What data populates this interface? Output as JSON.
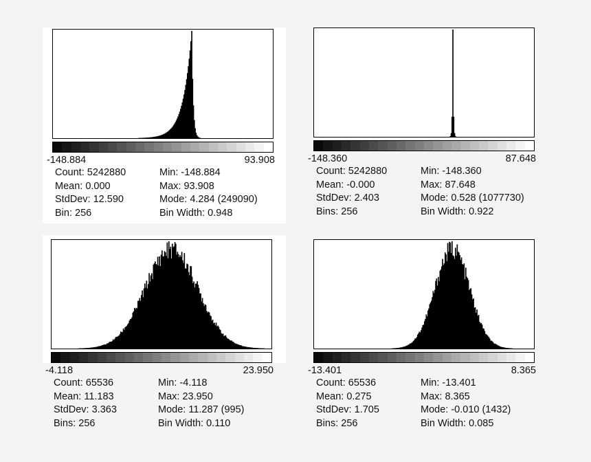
{
  "chart_data": [
    {
      "type": "bar",
      "title": "",
      "distribution": "skewed-left",
      "peak_x": 4.284,
      "xlim": [
        -148.884,
        93.908
      ],
      "range_min_label": "-148.884",
      "range_max_label": "93.908",
      "stats": {
        "count": "Count: 5242880",
        "mean": "Mean: 0.000",
        "stddev": "StdDev: 12.590",
        "bins": "Bin: 256",
        "min": "Min: -148.884",
        "max": "Max: 93.908",
        "mode": "Mode: 4.284 (249090)",
        "bin_width": "Bin Width: 0.948"
      },
      "bins": 256,
      "mean": 0.0,
      "stddev": 12.59,
      "mode_count": 249090
    },
    {
      "type": "bar",
      "title": "",
      "distribution": "spike",
      "peak_x": 0.528,
      "xlim": [
        -148.36,
        87.648
      ],
      "range_min_label": "-148.360",
      "range_max_label": "87.648",
      "stats": {
        "count": "Count: 5242880",
        "mean": "Mean: -0.000",
        "stddev": "StdDev: 2.403",
        "bins": "Bins: 256",
        "min": "Min: -148.360",
        "max": "Max: 87.648",
        "mode": "Mode: 0.528 (1077730)",
        "bin_width": "Bin Width: 0.922"
      },
      "bins": 256,
      "mean": 0.0,
      "stddev": 2.403,
      "mode_count": 1077730
    },
    {
      "type": "bar",
      "title": "",
      "distribution": "normal",
      "peak_x": 11.287,
      "xlim": [
        -4.118,
        23.95
      ],
      "range_min_label": "-4.118",
      "range_max_label": "23.950",
      "stats": {
        "count": "Count: 65536",
        "mean": "Mean: 11.183",
        "stddev": "StdDev: 3.363",
        "bins": "Bins: 256",
        "min": "Min: -4.118",
        "max": "Max: 23.950",
        "mode": "Mode: 11.287 (995)",
        "bin_width": "Bin Width: 0.110"
      },
      "bins": 256,
      "mean": 11.183,
      "stddev": 3.363,
      "mode_count": 995
    },
    {
      "type": "bar",
      "title": "",
      "distribution": "normal",
      "peak_x": -0.01,
      "xlim": [
        -13.401,
        8.365
      ],
      "range_min_label": "-13.401",
      "range_max_label": "8.365",
      "stats": {
        "count": "Count: 65536",
        "mean": "Mean: 0.275",
        "stddev": "StdDev: 1.705",
        "bins": "Bins: 256",
        "min": "Min: -13.401",
        "max": "Max: 8.365",
        "mode": "Mode: -0.010 (1432)",
        "bin_width": "Bin Width: 0.085"
      },
      "bins": 256,
      "mean": 0.275,
      "stddev": 1.705,
      "mode_count": 1432
    }
  ]
}
